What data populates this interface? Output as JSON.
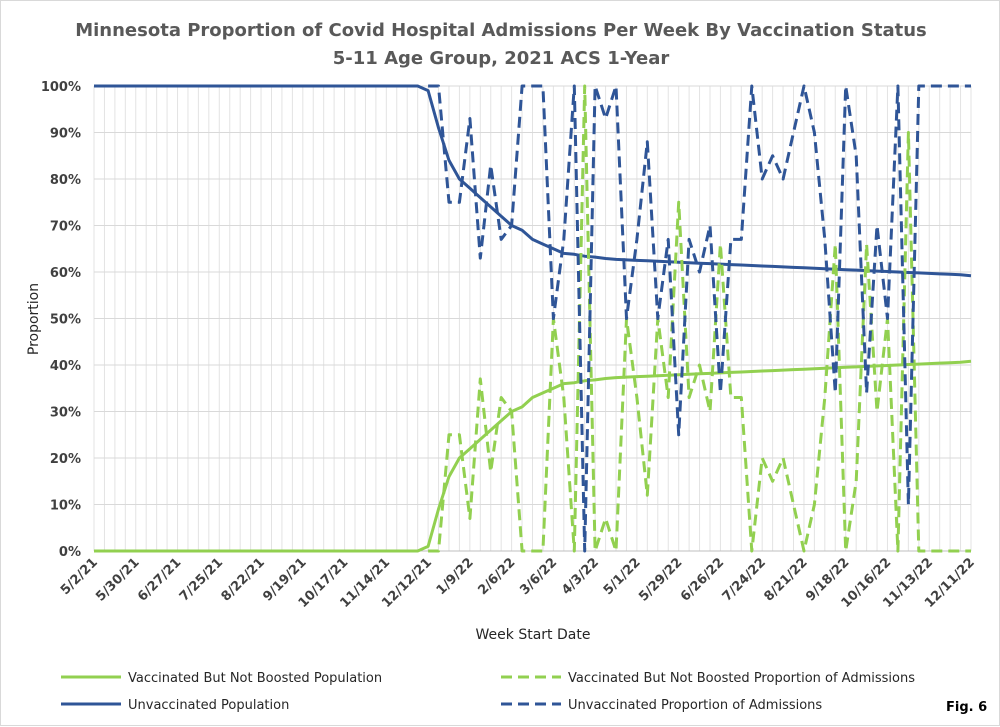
{
  "chart_data": {
    "type": "line",
    "title": "Minnesota Proportion of Covid Hospital Admissions Per Week By Vaccination Status",
    "subtitle": "5-11 Age Group, 2021 ACS 1-Year",
    "xlabel": "Week Start Date",
    "ylabel": "Proportion",
    "ylim": [
      0,
      1
    ],
    "yticks": [
      "0%",
      "10%",
      "20%",
      "30%",
      "40%",
      "50%",
      "60%",
      "70%",
      "80%",
      "90%",
      "100%"
    ],
    "x_tick_labels": [
      "5/2/21",
      "5/30/21",
      "6/27/21",
      "7/25/21",
      "8/22/21",
      "9/19/21",
      "10/17/21",
      "11/14/21",
      "12/12/21",
      "1/9/22",
      "2/6/22",
      "3/6/22",
      "4/3/22",
      "5/1/22",
      "5/29/22",
      "6/26/22",
      "7/24/22",
      "8/21/22",
      "9/18/22",
      "10/16/22",
      "11/13/22",
      "12/11/22"
    ],
    "x": [
      "5/2/21",
      "5/9/21",
      "5/16/21",
      "5/23/21",
      "5/30/21",
      "6/6/21",
      "6/13/21",
      "6/20/21",
      "6/27/21",
      "7/4/21",
      "7/11/21",
      "7/18/21",
      "7/25/21",
      "8/1/21",
      "8/8/21",
      "8/15/21",
      "8/22/21",
      "8/29/21",
      "9/5/21",
      "9/12/21",
      "9/19/21",
      "9/26/21",
      "10/3/21",
      "10/10/21",
      "10/17/21",
      "10/24/21",
      "10/31/21",
      "11/7/21",
      "11/14/21",
      "11/21/21",
      "11/28/21",
      "12/5/21",
      "12/12/21",
      "12/19/21",
      "12/26/21",
      "1/2/22",
      "1/9/22",
      "1/16/22",
      "1/23/22",
      "1/30/22",
      "2/6/22",
      "2/13/22",
      "2/20/22",
      "2/27/22",
      "3/6/22",
      "3/13/22",
      "3/20/22",
      "3/27/22",
      "4/3/22",
      "4/10/22",
      "4/17/22",
      "4/24/22",
      "5/1/22",
      "5/8/22",
      "5/15/22",
      "5/22/22",
      "5/29/22",
      "6/5/22",
      "6/12/22",
      "6/19/22",
      "6/26/22",
      "7/3/22",
      "7/10/22",
      "7/17/22",
      "7/24/22",
      "7/31/22",
      "8/7/22",
      "8/14/22",
      "8/21/22",
      "8/28/22",
      "9/4/22",
      "9/11/22",
      "9/18/22",
      "9/25/22",
      "10/2/22",
      "10/9/22",
      "10/16/22",
      "10/23/22",
      "10/30/22",
      "11/6/22",
      "11/13/22",
      "11/20/22",
      "11/27/22",
      "12/4/22",
      "12/11/22"
    ],
    "series": [
      {
        "name": "Vaccinated But Not Boosted Population",
        "style": "solid",
        "color": "#92d050",
        "values": [
          0,
          0,
          0,
          0,
          0,
          0,
          0,
          0,
          0,
          0,
          0,
          0,
          0,
          0,
          0,
          0,
          0,
          0,
          0,
          0,
          0,
          0,
          0,
          0,
          0,
          0,
          0,
          0,
          0,
          0,
          0,
          0,
          0.01,
          0.09,
          0.16,
          0.2,
          0.22,
          0.24,
          0.26,
          0.28,
          0.3,
          0.31,
          0.33,
          0.34,
          0.35,
          0.36,
          0.362,
          0.366,
          0.368,
          0.371,
          0.373,
          0.374,
          0.375,
          0.376,
          0.377,
          0.378,
          0.379,
          0.38,
          0.381,
          0.382,
          0.383,
          0.384,
          0.385,
          0.386,
          0.387,
          0.388,
          0.389,
          0.39,
          0.391,
          0.392,
          0.393,
          0.394,
          0.395,
          0.396,
          0.397,
          0.398,
          0.399,
          0.4,
          0.401,
          0.402,
          0.403,
          0.404,
          0.405,
          0.406,
          0.408
        ]
      },
      {
        "name": "Vaccinated But Not Boosted Proportion of Admissions",
        "style": "dashed",
        "color": "#92d050",
        "values": [
          null,
          null,
          null,
          null,
          null,
          null,
          null,
          null,
          null,
          null,
          null,
          null,
          null,
          null,
          null,
          null,
          null,
          null,
          null,
          null,
          null,
          null,
          null,
          null,
          null,
          null,
          null,
          null,
          null,
          null,
          null,
          null,
          0,
          0,
          0.25,
          0.25,
          0.07,
          0.37,
          0.17,
          0.33,
          0.3,
          0,
          0,
          0,
          0.5,
          0.33,
          0,
          1,
          0,
          0.07,
          0,
          0.5,
          0.33,
          0.12,
          0.5,
          0.33,
          0.75,
          0.33,
          0.4,
          0.3,
          0.66,
          0.33,
          0.33,
          0,
          0.2,
          0.15,
          0.2,
          0.1,
          0,
          0.1,
          0.33,
          0.66,
          0,
          0.15,
          0.66,
          0.3,
          0.5,
          0,
          0.9,
          0,
          0,
          0,
          0,
          0,
          0
        ]
      },
      {
        "name": "Unvaccinated Population",
        "style": "solid",
        "color": "#2f5597",
        "values": [
          1,
          1,
          1,
          1,
          1,
          1,
          1,
          1,
          1,
          1,
          1,
          1,
          1,
          1,
          1,
          1,
          1,
          1,
          1,
          1,
          1,
          1,
          1,
          1,
          1,
          1,
          1,
          1,
          1,
          1,
          1,
          1,
          0.99,
          0.91,
          0.84,
          0.8,
          0.78,
          0.76,
          0.74,
          0.72,
          0.7,
          0.69,
          0.67,
          0.66,
          0.65,
          0.64,
          0.638,
          0.634,
          0.632,
          0.629,
          0.627,
          0.626,
          0.625,
          0.624,
          0.623,
          0.622,
          0.621,
          0.62,
          0.619,
          0.618,
          0.617,
          0.616,
          0.615,
          0.614,
          0.613,
          0.612,
          0.611,
          0.61,
          0.609,
          0.608,
          0.607,
          0.606,
          0.605,
          0.604,
          0.603,
          0.602,
          0.601,
          0.6,
          0.599,
          0.598,
          0.597,
          0.596,
          0.595,
          0.594,
          0.592
        ]
      },
      {
        "name": "Unvaccinated Proportion of Admissions",
        "style": "dashed",
        "color": "#2f5597",
        "values": [
          null,
          null,
          null,
          null,
          null,
          null,
          null,
          null,
          null,
          null,
          null,
          null,
          null,
          null,
          null,
          null,
          null,
          null,
          null,
          null,
          null,
          null,
          null,
          null,
          null,
          null,
          null,
          null,
          null,
          null,
          null,
          null,
          1,
          1,
          0.75,
          0.75,
          0.93,
          0.63,
          0.83,
          0.67,
          0.7,
          1,
          1,
          1,
          0.5,
          0.67,
          1,
          0,
          1,
          0.93,
          1,
          0.5,
          0.67,
          0.88,
          0.5,
          0.67,
          0.25,
          0.67,
          0.6,
          0.7,
          0.34,
          0.67,
          0.67,
          1,
          0.8,
          0.85,
          0.8,
          0.9,
          1,
          0.9,
          0.67,
          0.34,
          1,
          0.85,
          0.34,
          0.7,
          0.5,
          1,
          0.1,
          1,
          1,
          1,
          1,
          1,
          1
        ]
      }
    ],
    "legend_position": "bottom",
    "grid": true
  },
  "figure_label": "Fig. 6"
}
